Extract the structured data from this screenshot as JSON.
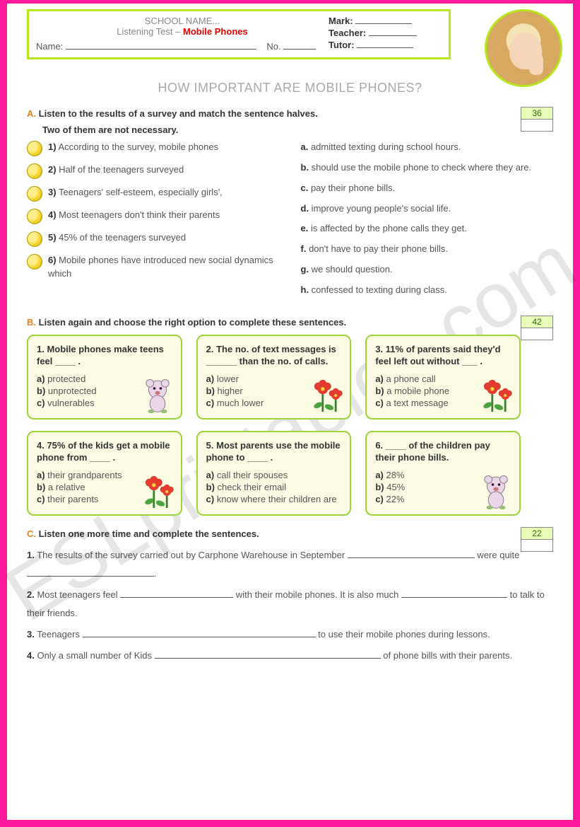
{
  "colors": {
    "page_border": "#ff1a9c",
    "lime": "#b6e61e",
    "orange": "#e8831e",
    "red": "#e60000",
    "gray_title": "#a9a9a9",
    "card_bg": "#fbfce3",
    "card_border": "#9ed43b",
    "score_bg": "#e8fbb8"
  },
  "header": {
    "school": "SCHOOL NAME...",
    "subtitle_prefix": "Listening Test – ",
    "subtitle_bold": "Mobile Phones",
    "name_label": "Name:",
    "no_label": "No.",
    "mark_label": "Mark:",
    "teacher_label": "Teacher:",
    "tutor_label": "Tutor:",
    "name_blank_w": 270,
    "no_blank_w": 46,
    "hr_blank_w": 80
  },
  "title": "HOW IMPORTANT ARE MOBILE PHONES?",
  "sectionA": {
    "letter": "A.",
    "instruction1": "Listen to the results of a survey and match the sentence halves.",
    "instruction2": "Two of them are not necessary.",
    "score": "36",
    "left": [
      {
        "n": "1)",
        "t": "According to the survey, mobile phones"
      },
      {
        "n": "2)",
        "t": "Half of the teenagers surveyed"
      },
      {
        "n": "3)",
        "t": "Teenagers' self-esteem, especially girls',"
      },
      {
        "n": "4)",
        "t": "Most teenagers don't think their parents"
      },
      {
        "n": "5)",
        "t": "45% of the teenagers surveyed"
      },
      {
        "n": "6)",
        "t": "Mobile phones have introduced new social dynamics which"
      }
    ],
    "right": [
      {
        "l": "a.",
        "t": "admitted texting during school hours."
      },
      {
        "l": "b.",
        "t": "should use the mobile phone to check where they are."
      },
      {
        "l": "c.",
        "t": "pay their phone bills."
      },
      {
        "l": "d.",
        "t": "improve young people's social life."
      },
      {
        "l": "e.",
        "t": "is affected by the phone calls they get."
      },
      {
        "l": "f.",
        "t": "don't have to pay their phone bills."
      },
      {
        "l": "g.",
        "t": "we should question."
      },
      {
        "l": "h.",
        "t": "confessed to texting during class."
      }
    ]
  },
  "sectionB": {
    "letter": "B.",
    "instruction": "Listen again and choose the right option to complete these sentences.",
    "score": "42",
    "cards": [
      {
        "q": "1. Mobile phones make teens feel ____ .",
        "opts": [
          {
            "l": "a)",
            "t": "protected"
          },
          {
            "l": "b)",
            "t": "unprotected"
          },
          {
            "l": "c)",
            "t": "vulnerables"
          }
        ],
        "deco": "bear"
      },
      {
        "q": "2. The no. of text messages is ______ than the no. of calls.",
        "opts": [
          {
            "l": "a)",
            "t": "lower"
          },
          {
            "l": "b)",
            "t": "higher"
          },
          {
            "l": "c)",
            "t": "much lower"
          }
        ],
        "deco": "flower"
      },
      {
        "q": "3. 11% of parents said they'd feel left out without ___ .",
        "opts": [
          {
            "l": "a)",
            "t": "a phone call"
          },
          {
            "l": "b)",
            "t": "a mobile phone"
          },
          {
            "l": "c)",
            "t": "a text message"
          }
        ],
        "deco": "flower"
      },
      {
        "q": "4. 75% of the kids get a mobile phone from ____ .",
        "opts": [
          {
            "l": "a)",
            "t": "their grandparents"
          },
          {
            "l": "b)",
            "t": "a relative"
          },
          {
            "l": "c)",
            "t": "their parents"
          }
        ],
        "deco": "flower"
      },
      {
        "q": "5. Most parents use the mobile phone to ____ .",
        "opts": [
          {
            "l": "a)",
            "t": "call their spouses"
          },
          {
            "l": "b)",
            "t": "check their email"
          },
          {
            "l": "c)",
            "t": "know where their children are"
          }
        ],
        "deco": null
      },
      {
        "q": "6. ____ of the children pay their phone bills.",
        "opts": [
          {
            "l": "a)",
            "t": "28%"
          },
          {
            "l": "b)",
            "t": "45%"
          },
          {
            "l": "c)",
            "t": "22%"
          }
        ],
        "deco": "bear"
      }
    ]
  },
  "sectionC": {
    "letter": "C.",
    "instruction": "Listen one more time and complete the sentences.",
    "score": "22",
    "lines": [
      {
        "n": "1.",
        "parts": [
          "The results of the survey carried out by Carphone Warehouse in September ",
          {
            "blank": 180
          },
          " were quite ",
          {
            "blank": 180
          },
          "."
        ]
      },
      {
        "n": "2.",
        "parts": [
          "Most teenagers feel ",
          {
            "blank": 160
          },
          " with their mobile phones. It is also much ",
          {
            "blank": 150
          },
          " to talk to their friends."
        ]
      },
      {
        "n": "3.",
        "parts": [
          "Teenagers ",
          {
            "blank": 330
          },
          " to use their mobile phones during lessons."
        ]
      },
      {
        "n": "4.",
        "parts": [
          "Only a small number of Kids ",
          {
            "blank": 320
          },
          " of phone bills with their parents."
        ]
      }
    ]
  },
  "watermark": "ESLprintables.com"
}
